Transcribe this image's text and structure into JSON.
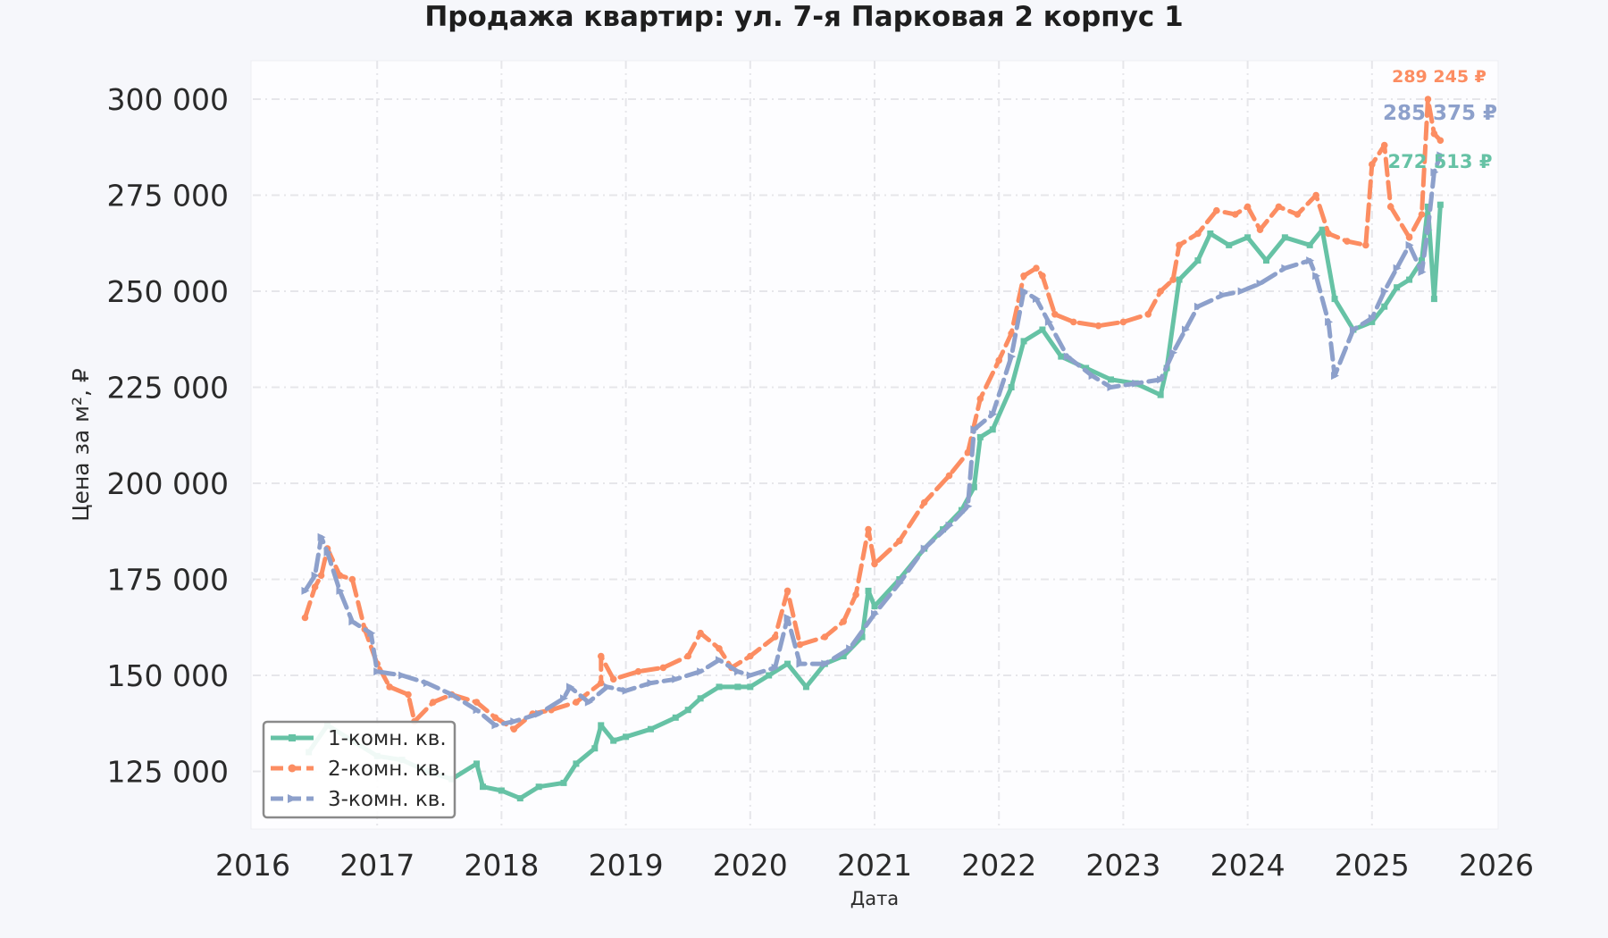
{
  "chart_data": {
    "type": "line",
    "title": "Продажа квартир: ул. 7-я Парковая 2 корпус 1",
    "xlabel": "Дата",
    "ylabel": "Цена за м², ₽",
    "xlim": [
      2016,
      2026
    ],
    "ylim": [
      110000,
      310000
    ],
    "x_ticks": [
      "2016",
      "2017",
      "2018",
      "2019",
      "2020",
      "2021",
      "2022",
      "2023",
      "2024",
      "2025",
      "2026"
    ],
    "y_ticks": [
      {
        "value": 125000,
        "label": "125 000"
      },
      {
        "value": 150000,
        "label": "150 000"
      },
      {
        "value": 175000,
        "label": "175 000"
      },
      {
        "value": 200000,
        "label": "200 000"
      },
      {
        "value": 225000,
        "label": "225 000"
      },
      {
        "value": 250000,
        "label": "250 000"
      },
      {
        "value": 275000,
        "label": "275 000"
      },
      {
        "value": 300000,
        "label": "300 000"
      }
    ],
    "grid": true,
    "legend_position": "lower-left",
    "series": [
      {
        "name": "1-комн. кв.",
        "color": "#66c2a5",
        "dash": "solid",
        "marker": "square",
        "end_label": "272 513 ₽",
        "points": [
          [
            2016.45,
            130000
          ],
          [
            2016.6,
            137000
          ],
          [
            2016.8,
            133000
          ],
          [
            2017.0,
            129000
          ],
          [
            2017.2,
            128000
          ],
          [
            2017.4,
            125000
          ],
          [
            2017.6,
            123000
          ],
          [
            2017.8,
            127000
          ],
          [
            2017.85,
            121000
          ],
          [
            2018.0,
            120000
          ],
          [
            2018.15,
            118000
          ],
          [
            2018.3,
            121000
          ],
          [
            2018.5,
            122000
          ],
          [
            2018.6,
            127000
          ],
          [
            2018.75,
            131000
          ],
          [
            2018.8,
            137000
          ],
          [
            2018.9,
            133000
          ],
          [
            2019.0,
            134000
          ],
          [
            2019.2,
            136000
          ],
          [
            2019.4,
            139000
          ],
          [
            2019.5,
            141000
          ],
          [
            2019.6,
            144000
          ],
          [
            2019.75,
            147000
          ],
          [
            2019.9,
            147000
          ],
          [
            2020.0,
            147000
          ],
          [
            2020.15,
            150000
          ],
          [
            2020.3,
            153000
          ],
          [
            2020.45,
            147000
          ],
          [
            2020.6,
            153000
          ],
          [
            2020.75,
            155000
          ],
          [
            2020.9,
            160000
          ],
          [
            2020.95,
            172000
          ],
          [
            2021.0,
            168000
          ],
          [
            2021.2,
            175000
          ],
          [
            2021.4,
            183000
          ],
          [
            2021.55,
            188000
          ],
          [
            2021.7,
            193000
          ],
          [
            2021.8,
            199000
          ],
          [
            2021.85,
            212000
          ],
          [
            2021.95,
            214000
          ],
          [
            2022.1,
            225000
          ],
          [
            2022.2,
            237000
          ],
          [
            2022.35,
            240000
          ],
          [
            2022.5,
            233000
          ],
          [
            2022.7,
            230000
          ],
          [
            2022.9,
            227000
          ],
          [
            2023.1,
            226000
          ],
          [
            2023.3,
            223000
          ],
          [
            2023.35,
            230000
          ],
          [
            2023.45,
            253000
          ],
          [
            2023.6,
            258000
          ],
          [
            2023.7,
            265000
          ],
          [
            2023.85,
            262000
          ],
          [
            2024.0,
            264000
          ],
          [
            2024.15,
            258000
          ],
          [
            2024.3,
            264000
          ],
          [
            2024.5,
            262000
          ],
          [
            2024.6,
            266000
          ],
          [
            2024.7,
            248000
          ],
          [
            2024.85,
            240000
          ],
          [
            2025.0,
            242000
          ],
          [
            2025.1,
            246000
          ],
          [
            2025.2,
            251000
          ],
          [
            2025.3,
            253000
          ],
          [
            2025.4,
            258000
          ],
          [
            2025.45,
            272000
          ],
          [
            2025.5,
            248000
          ],
          [
            2025.55,
            272513
          ]
        ]
      },
      {
        "name": "2-комн. кв.",
        "color": "#fc8d62",
        "dash": "dashed",
        "marker": "circle",
        "end_label": "289 245 ₽",
        "points": [
          [
            2016.42,
            165000
          ],
          [
            2016.5,
            173000
          ],
          [
            2016.55,
            176000
          ],
          [
            2016.6,
            183000
          ],
          [
            2016.7,
            176000
          ],
          [
            2016.8,
            175000
          ],
          [
            2016.9,
            162000
          ],
          [
            2017.0,
            153000
          ],
          [
            2017.1,
            147000
          ],
          [
            2017.25,
            145000
          ],
          [
            2017.3,
            138000
          ],
          [
            2017.45,
            143000
          ],
          [
            2017.6,
            145000
          ],
          [
            2017.8,
            143000
          ],
          [
            2017.95,
            139000
          ],
          [
            2018.1,
            136000
          ],
          [
            2018.25,
            140000
          ],
          [
            2018.4,
            141000
          ],
          [
            2018.6,
            143000
          ],
          [
            2018.8,
            148000
          ],
          [
            2018.8,
            155000
          ],
          [
            2018.9,
            149000
          ],
          [
            2019.1,
            151000
          ],
          [
            2019.3,
            152000
          ],
          [
            2019.5,
            155000
          ],
          [
            2019.6,
            161000
          ],
          [
            2019.75,
            157000
          ],
          [
            2019.85,
            152000
          ],
          [
            2020.0,
            155000
          ],
          [
            2020.2,
            160000
          ],
          [
            2020.3,
            172000
          ],
          [
            2020.4,
            158000
          ],
          [
            2020.6,
            160000
          ],
          [
            2020.75,
            164000
          ],
          [
            2020.85,
            171000
          ],
          [
            2020.95,
            188000
          ],
          [
            2021.0,
            179000
          ],
          [
            2021.2,
            185000
          ],
          [
            2021.4,
            195000
          ],
          [
            2021.6,
            202000
          ],
          [
            2021.75,
            208000
          ],
          [
            2021.85,
            222000
          ],
          [
            2022.0,
            232000
          ],
          [
            2022.1,
            239000
          ],
          [
            2022.2,
            254000
          ],
          [
            2022.3,
            256000
          ],
          [
            2022.35,
            254000
          ],
          [
            2022.45,
            244000
          ],
          [
            2022.6,
            242000
          ],
          [
            2022.8,
            241000
          ],
          [
            2023.0,
            242000
          ],
          [
            2023.2,
            244000
          ],
          [
            2023.3,
            250000
          ],
          [
            2023.4,
            253000
          ],
          [
            2023.45,
            262000
          ],
          [
            2023.6,
            265000
          ],
          [
            2023.75,
            271000
          ],
          [
            2023.9,
            270000
          ],
          [
            2024.0,
            272000
          ],
          [
            2024.1,
            266000
          ],
          [
            2024.25,
            272000
          ],
          [
            2024.4,
            270000
          ],
          [
            2024.55,
            275000
          ],
          [
            2024.65,
            265000
          ],
          [
            2024.8,
            263000
          ],
          [
            2024.95,
            262000
          ],
          [
            2025.0,
            283000
          ],
          [
            2025.1,
            288000
          ],
          [
            2025.15,
            272000
          ],
          [
            2025.3,
            264000
          ],
          [
            2025.4,
            270000
          ],
          [
            2025.45,
            300000
          ],
          [
            2025.5,
            291000
          ],
          [
            2025.55,
            289245
          ]
        ]
      },
      {
        "name": "3-комн. кв.",
        "color": "#8da0cb",
        "dash": "dashed",
        "marker": "triangle-right",
        "end_label": "285 375 ₽",
        "points": [
          [
            2016.42,
            172000
          ],
          [
            2016.5,
            176000
          ],
          [
            2016.55,
            186000
          ],
          [
            2016.6,
            182000
          ],
          [
            2016.7,
            172000
          ],
          [
            2016.8,
            164000
          ],
          [
            2016.95,
            161000
          ],
          [
            2017.0,
            151000
          ],
          [
            2017.2,
            150000
          ],
          [
            2017.4,
            148000
          ],
          [
            2017.6,
            145000
          ],
          [
            2017.8,
            141000
          ],
          [
            2017.95,
            137000
          ],
          [
            2018.1,
            138000
          ],
          [
            2018.3,
            140000
          ],
          [
            2018.5,
            144000
          ],
          [
            2018.55,
            147000
          ],
          [
            2018.7,
            143000
          ],
          [
            2018.85,
            147000
          ],
          [
            2019.0,
            146000
          ],
          [
            2019.2,
            148000
          ],
          [
            2019.4,
            149000
          ],
          [
            2019.6,
            151000
          ],
          [
            2019.75,
            154000
          ],
          [
            2019.9,
            151000
          ],
          [
            2020.0,
            150000
          ],
          [
            2020.2,
            152000
          ],
          [
            2020.3,
            165000
          ],
          [
            2020.4,
            153000
          ],
          [
            2020.6,
            153000
          ],
          [
            2020.8,
            157000
          ],
          [
            2021.0,
            166000
          ],
          [
            2021.2,
            174000
          ],
          [
            2021.4,
            183000
          ],
          [
            2021.6,
            189000
          ],
          [
            2021.75,
            194000
          ],
          [
            2021.8,
            214000
          ],
          [
            2021.95,
            218000
          ],
          [
            2022.1,
            233000
          ],
          [
            2022.2,
            250000
          ],
          [
            2022.3,
            248000
          ],
          [
            2022.4,
            242000
          ],
          [
            2022.55,
            233000
          ],
          [
            2022.75,
            228000
          ],
          [
            2022.9,
            225000
          ],
          [
            2023.1,
            226000
          ],
          [
            2023.3,
            227000
          ],
          [
            2023.4,
            234000
          ],
          [
            2023.5,
            240000
          ],
          [
            2023.6,
            246000
          ],
          [
            2023.8,
            249000
          ],
          [
            2023.95,
            250000
          ],
          [
            2024.1,
            252000
          ],
          [
            2024.3,
            256000
          ],
          [
            2024.5,
            258000
          ],
          [
            2024.55,
            254000
          ],
          [
            2024.65,
            242000
          ],
          [
            2024.7,
            228000
          ],
          [
            2024.85,
            240000
          ],
          [
            2025.0,
            243000
          ],
          [
            2025.1,
            250000
          ],
          [
            2025.2,
            256000
          ],
          [
            2025.3,
            262000
          ],
          [
            2025.4,
            255000
          ],
          [
            2025.45,
            266000
          ],
          [
            2025.5,
            281000
          ],
          [
            2025.55,
            285375
          ]
        ]
      }
    ]
  }
}
